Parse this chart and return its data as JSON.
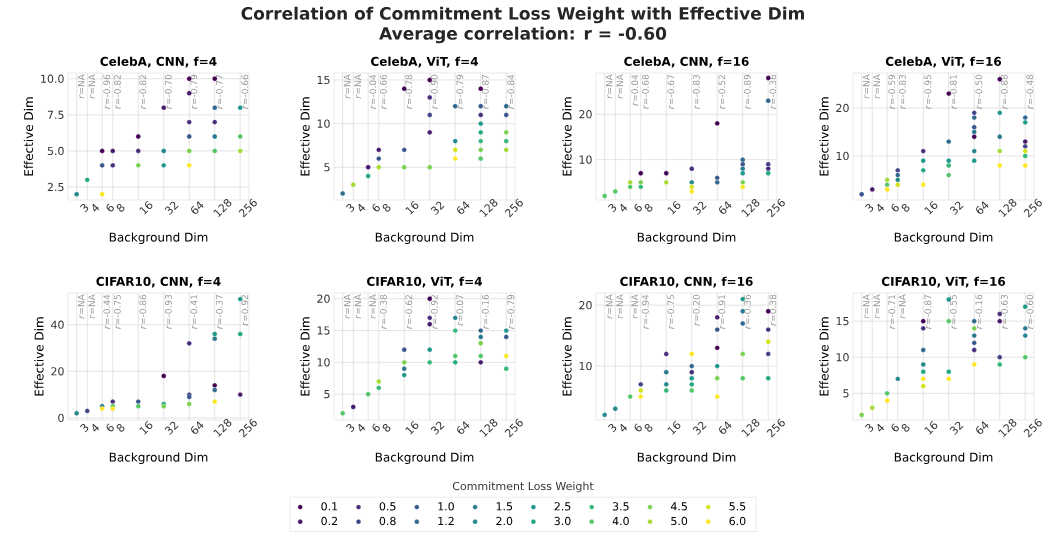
{
  "chart_data": [
    {
      "type": "scatter",
      "title": "CelebA, CNN, f=4",
      "xlabel": "Background Dim",
      "ylabel": "Effective Dim",
      "log": "x",
      "xlim": [
        2.37,
        325
      ],
      "xticks": [
        3,
        4,
        6,
        8,
        16,
        32,
        64,
        128,
        256
      ],
      "ylim": [
        1.6,
        10.4
      ],
      "yticks": [
        2.5,
        {
          "value": 5,
          "label": "5.0"
        },
        7.5,
        {
          "value": 10,
          "label": "10.0"
        }
      ],
      "grid": true,
      "marker": "circle",
      "annotations": [
        "Correlation of Commitment Loss Weight with Effective Dim",
        "Average correlation: r = -0.60",
        "*r*=NA",
        "*r*=NA",
        "*r*=-0.96",
        "*r*=-0.82",
        "*r*=-0.82",
        "*r*=-0.70",
        "*r*=-0.79",
        "*r*=-0.77",
        "*r*=-0.66"
      ],
      "series": [
        {
          "color": "#440154",
          "x": [
            6,
            16,
            64,
            128
          ],
          "values": [
            5,
            6,
            10,
            10
          ]
        },
        {
          "color": "#481a6c",
          "x": [
            8,
            32,
            64
          ],
          "values": [
            5,
            8,
            9
          ]
        },
        {
          "color": "#472f7d",
          "x": [
            8,
            16,
            64,
            128
          ],
          "values": [
            4,
            5,
            7,
            7
          ]
        },
        {
          "color": "#39568c",
          "x": [
            6,
            64
          ],
          "values": [
            4,
            6
          ]
        },
        {
          "color": "#31688e",
          "x": [
            128
          ],
          "values": [
            8
          ]
        },
        {
          "color": "#2a788e",
          "x": [
            128
          ],
          "values": [
            6
          ]
        },
        {
          "color": "#23888e",
          "x": [
            3,
            32
          ],
          "values": [
            2,
            5
          ]
        },
        {
          "color": "#1f988b",
          "x": [
            32,
            256
          ],
          "values": [
            4,
            8
          ]
        },
        {
          "color": "#22a884",
          "x": [
            4
          ],
          "values": [
            3
          ]
        },
        {
          "color": "#54c568",
          "x": [
            128,
            256
          ],
          "values": [
            5,
            6
          ]
        },
        {
          "color": "#7ad151",
          "x": [
            16,
            64
          ],
          "values": [
            4,
            5
          ]
        },
        {
          "color": "#a5db36",
          "x": [
            256
          ],
          "values": [
            5
          ]
        },
        {
          "color": "#fde725",
          "x": [
            6,
            64
          ],
          "values": [
            2,
            4
          ]
        }
      ]
    },
    {
      "type": "scatter",
      "title": "CelebA, ViT, f=4",
      "xlabel": "Background Dim",
      "ylabel": "Effective Dim",
      "log": "x",
      "xlim": [
        2.37,
        325
      ],
      "xticks": [
        3,
        4,
        6,
        8,
        16,
        32,
        64,
        128,
        256
      ],
      "ylim": [
        1.25,
        15.8
      ],
      "yticks": [
        5,
        10,
        15
      ],
      "grid": true,
      "marker": "circle",
      "annotations": [
        "*r*=NA",
        "*r*=NA",
        "*r*=-0.04",
        "*r*=-0.66",
        "*r*=-0.78",
        "*r*=-0.90",
        "*r*=-0.79",
        "*r*=-0.87",
        "*r*=-0.84"
      ],
      "series": [
        {
          "color": "#440154",
          "x": [
            16,
            32,
            128
          ],
          "values": [
            14,
            15,
            14
          ]
        },
        {
          "color": "#481a6c",
          "x": [
            6,
            8,
            32
          ],
          "values": [
            5,
            7,
            9
          ]
        },
        {
          "color": "#472f7d",
          "x": [
            32,
            128
          ],
          "values": [
            13,
            11
          ]
        },
        {
          "color": "#414487",
          "x": [
            32
          ],
          "values": [
            11
          ]
        },
        {
          "color": "#39568c",
          "x": [
            8,
            16,
            128,
            256
          ],
          "values": [
            6,
            7,
            12,
            11
          ]
        },
        {
          "color": "#31688e",
          "x": [
            3,
            64,
            256
          ],
          "values": [
            2,
            12,
            12
          ]
        },
        {
          "color": "#23888e",
          "x": [
            64
          ],
          "values": [
            8
          ]
        },
        {
          "color": "#1f988b",
          "x": [
            128
          ],
          "values": [
            10
          ]
        },
        {
          "color": "#22a884",
          "x": [
            6,
            128
          ],
          "values": [
            4,
            9
          ]
        },
        {
          "color": "#35b779",
          "x": [
            128,
            256
          ],
          "values": [
            8,
            8
          ]
        },
        {
          "color": "#54c568",
          "x": [
            128
          ],
          "values": [
            6
          ]
        },
        {
          "color": "#7ad151",
          "x": [
            16,
            32,
            128,
            256
          ],
          "values": [
            5,
            5,
            7,
            9
          ]
        },
        {
          "color": "#a5db36",
          "x": [
            4,
            8,
            256
          ],
          "values": [
            3,
            5,
            7
          ]
        },
        {
          "color": "#d2e21b",
          "x": [
            64
          ],
          "values": [
            7
          ]
        },
        {
          "color": "#fde725",
          "x": [
            64
          ],
          "values": [
            6
          ]
        }
      ]
    },
    {
      "type": "scatter",
      "title": "CelebA, CNN, f=16",
      "xlabel": "Background Dim",
      "ylabel": "Effective Dim",
      "log": "x",
      "xlim": [
        2.37,
        325
      ],
      "xticks": [
        3,
        4,
        6,
        8,
        16,
        32,
        64,
        128,
        256
      ],
      "ylim": [
        1.1,
        29.1
      ],
      "yticks": [
        10,
        20
      ],
      "grid": true,
      "marker": "circle",
      "annotations": [
        "*r*=NA",
        "*r*=NA",
        "*r*=0.04",
        "*r*=-0.68",
        "*r*=-0.67",
        "*r*=-0.83",
        "*r*=-0.52",
        "*r*=-0.89",
        "*r*=-0.36"
      ],
      "series": [
        {
          "color": "#440154",
          "x": [
            8,
            16,
            64,
            256
          ],
          "values": [
            7,
            7,
            18,
            28
          ]
        },
        {
          "color": "#472f7d",
          "x": [
            32,
            256
          ],
          "values": [
            8,
            8
          ]
        },
        {
          "color": "#414487",
          "x": [
            256
          ],
          "values": [
            9
          ]
        },
        {
          "color": "#39568c",
          "x": [
            64,
            128
          ],
          "values": [
            6,
            9
          ]
        },
        {
          "color": "#31688e",
          "x": [
            64,
            128,
            256
          ],
          "values": [
            5,
            10,
            23
          ]
        },
        {
          "color": "#2a788e",
          "x": [
            128
          ],
          "values": [
            8
          ]
        },
        {
          "color": "#23888e",
          "x": [
            32
          ],
          "values": [
            5
          ]
        },
        {
          "color": "#1f988b",
          "x": [
            128
          ],
          "values": [
            7
          ]
        },
        {
          "color": "#22a884",
          "x": [
            256
          ],
          "values": [
            7
          ]
        },
        {
          "color": "#35b779",
          "x": [
            8
          ],
          "values": [
            4
          ]
        },
        {
          "color": "#54c568",
          "x": [
            3,
            4,
            6
          ],
          "values": [
            2,
            3,
            4
          ]
        },
        {
          "color": "#7ad151",
          "x": [
            8,
            128
          ],
          "values": [
            5,
            5
          ]
        },
        {
          "color": "#a5db36",
          "x": [
            6,
            16
          ],
          "values": [
            5,
            5
          ]
        },
        {
          "color": "#d2e21b",
          "x": [
            32
          ],
          "values": [
            4
          ]
        },
        {
          "color": "#fde725",
          "x": [
            32,
            128
          ],
          "values": [
            3,
            4
          ]
        }
      ]
    },
    {
      "type": "scatter",
      "title": "CelebA, ViT, f=16",
      "xlabel": "Background Dim",
      "ylabel": "Effective Dim",
      "log": "x",
      "xlim": [
        2.37,
        325
      ],
      "xticks": [
        3,
        4,
        6,
        8,
        16,
        32,
        64,
        128,
        256
      ],
      "ylim": [
        0.8,
        27.3
      ],
      "yticks": [
        10,
        20
      ],
      "grid": true,
      "marker": "circle",
      "annotations": [
        "*r*=NA",
        "*r*=NA",
        "*r*=-0.59",
        "*r*=-0.83",
        "*r*=-0.95",
        "*r*=-0.81",
        "*r*=-0.50",
        "*r*=-0.88",
        "*r*=-0.48"
      ],
      "series": [
        {
          "color": "#440154",
          "x": [
            32,
            64,
            128
          ],
          "values": [
            23,
            14,
            26
          ]
        },
        {
          "color": "#481a6c",
          "x": [
            4,
            256
          ],
          "values": [
            3,
            13
          ]
        },
        {
          "color": "#472f7d",
          "x": [
            16
          ],
          "values": [
            11
          ]
        },
        {
          "color": "#414487",
          "x": [
            8,
            64,
            256
          ],
          "values": [
            7,
            19,
            12
          ]
        },
        {
          "color": "#39568c",
          "x": [
            3,
            64
          ],
          "values": [
            2,
            16
          ]
        },
        {
          "color": "#31688e",
          "x": [
            8,
            32,
            64,
            256
          ],
          "values": [
            6,
            13,
            18,
            18
          ]
        },
        {
          "color": "#2a788e",
          "x": [
            64,
            128
          ],
          "values": [
            15,
            14
          ]
        },
        {
          "color": "#23888e",
          "x": [
            8,
            64
          ],
          "values": [
            5,
            11
          ]
        },
        {
          "color": "#1f988b",
          "x": [
            16,
            32,
            64,
            128,
            256
          ],
          "values": [
            9,
            9,
            9,
            19,
            17
          ]
        },
        {
          "color": "#22a884",
          "x": [
            16
          ],
          "values": [
            7
          ]
        },
        {
          "color": "#35b779",
          "x": [
            32,
            256
          ],
          "values": [
            8,
            10
          ]
        },
        {
          "color": "#54c568",
          "x": [
            6,
            32
          ],
          "values": [
            4,
            6
          ]
        },
        {
          "color": "#a5db36",
          "x": [
            6,
            128
          ],
          "values": [
            5,
            11
          ]
        },
        {
          "color": "#d2e21b",
          "x": [
            8,
            256
          ],
          "values": [
            4,
            11
          ]
        },
        {
          "color": "#fde725",
          "x": [
            6,
            16,
            128,
            256
          ],
          "values": [
            3,
            4,
            8,
            8
          ]
        }
      ]
    },
    {
      "type": "scatter",
      "title": "CIFAR10, CNN, f=4",
      "xlabel": "Background Dim",
      "ylabel": "Effective Dim",
      "log": "x",
      "xlim": [
        2.37,
        325
      ],
      "xticks": [
        3,
        4,
        6,
        8,
        16,
        32,
        64,
        128,
        256
      ],
      "ylim": [
        -0.9,
        53.6
      ],
      "yticks": [
        0,
        20,
        40
      ],
      "grid": true,
      "marker": "circle",
      "annotations": [
        "*r*=NA",
        "*r*=NA",
        "*r*=-0.44",
        "*r*=-0.75",
        "*r*=-0.86",
        "*r*=-0.93",
        "*r*=-0.41",
        "*r*=-0.37",
        "*r*=0.92"
      ],
      "series": [
        {
          "color": "#440154",
          "x": [
            32,
            128
          ],
          "values": [
            18,
            14
          ]
        },
        {
          "color": "#481a6c",
          "x": [
            256
          ],
          "values": [
            10
          ]
        },
        {
          "color": "#472f7d",
          "x": [
            8,
            64
          ],
          "values": [
            7,
            32
          ]
        },
        {
          "color": "#414487",
          "x": [
            4,
            64
          ],
          "values": [
            3,
            10
          ]
        },
        {
          "color": "#39568c",
          "x": [
            16,
            64
          ],
          "values": [
            7,
            9
          ]
        },
        {
          "color": "#31688e",
          "x": [
            128
          ],
          "values": [
            12
          ]
        },
        {
          "color": "#2a788e",
          "x": [
            6,
            128
          ],
          "values": [
            5,
            34
          ]
        },
        {
          "color": "#23888e",
          "x": [
            3
          ],
          "values": [
            2
          ]
        },
        {
          "color": "#1f988b",
          "x": [
            128,
            256
          ],
          "values": [
            36,
            51
          ]
        },
        {
          "color": "#22a884",
          "x": [
            32,
            256
          ],
          "values": [
            6,
            36
          ]
        },
        {
          "color": "#54c568",
          "x": [
            8,
            16
          ],
          "values": [
            5,
            5
          ]
        },
        {
          "color": "#7ad151",
          "x": [
            32,
            64
          ],
          "values": [
            5,
            6
          ]
        },
        {
          "color": "#fde725",
          "x": [
            6,
            8,
            128
          ],
          "values": [
            4,
            4,
            7
          ]
        }
      ]
    },
    {
      "type": "scatter",
      "title": "CIFAR10, ViT, f=4",
      "xlabel": "Background Dim",
      "ylabel": "Effective Dim",
      "log": "x",
      "xlim": [
        2.37,
        325
      ],
      "xticks": [
        3,
        4,
        6,
        8,
        16,
        32,
        64,
        128,
        256
      ],
      "ylim": [
        0.94,
        20.9
      ],
      "yticks": [
        5,
        10,
        15,
        20
      ],
      "grid": true,
      "marker": "circle",
      "legend": "bottom",
      "legend_title": "Commitment Loss Weight",
      "annotations": [
        "*r*=NA",
        "*r*=NA",
        "*r*=NA",
        "*r*=-0.38",
        "*r*=-0.62",
        "*r*=-0.92",
        "*r*=0.07",
        "*r*=-0.16",
        "*r*=-0.79"
      ],
      "series": [
        {
          "name": "0.1",
          "color": "#440154",
          "x": [
            32
          ],
          "values": [
            20
          ]
        },
        {
          "name": "0.2",
          "color": "#481a6c",
          "x": [
            4,
            32,
            128
          ],
          "values": [
            3,
            16,
            10
          ]
        },
        {
          "name": "0.5",
          "color": "#472f7d",
          "x": [
            32
          ],
          "values": [
            17
          ]
        },
        {
          "name": "0.8",
          "color": "#414487"
        },
        {
          "name": "1.0",
          "color": "#39568c",
          "x": [
            16,
            256
          ],
          "values": [
            12,
            14
          ]
        },
        {
          "name": "1.2",
          "color": "#31688e",
          "x": [
            128
          ],
          "values": [
            15
          ]
        },
        {
          "name": "1.5",
          "color": "#2a788e",
          "x": [
            16,
            128
          ],
          "values": [
            9,
            14
          ]
        },
        {
          "name": "2.0",
          "color": "#23888e",
          "x": [
            64
          ],
          "values": [
            17
          ]
        },
        {
          "name": "2.5",
          "color": "#1f988b",
          "x": [
            16,
            32,
            256
          ],
          "values": [
            8,
            12,
            15
          ]
        },
        {
          "name": "3.0",
          "color": "#22a884",
          "x": [
            64
          ],
          "values": [
            10
          ]
        },
        {
          "name": "3.5",
          "color": "#35b779",
          "x": [
            8,
            32,
            64,
            256
          ],
          "values": [
            6,
            10,
            15,
            9
          ]
        },
        {
          "name": "4.0",
          "color": "#54c568",
          "x": [
            3,
            6,
            64,
            128
          ],
          "values": [
            2,
            5,
            11,
            11
          ]
        },
        {
          "name": "4.5",
          "color": "#7ad151",
          "x": [
            16,
            128
          ],
          "values": [
            10,
            13
          ]
        },
        {
          "name": "5.0",
          "color": "#a5db36",
          "x": [
            8
          ],
          "values": [
            7
          ]
        },
        {
          "name": "5.5",
          "color": "#d2e21b"
        },
        {
          "name": "6.0",
          "color": "#fde725",
          "x": [
            256
          ],
          "values": [
            11
          ]
        }
      ]
    },
    {
      "type": "scatter",
      "title": "CIFAR10, CNN, f=16",
      "xlabel": "Background Dim",
      "ylabel": "Effective Dim",
      "log": "x",
      "xlim": [
        2.37,
        325
      ],
      "xticks": [
        3,
        4,
        6,
        8,
        16,
        32,
        64,
        128,
        256
      ],
      "ylim": [
        1.15,
        22
      ],
      "yticks": [
        10,
        20
      ],
      "grid": true,
      "marker": "circle",
      "annotations": [
        "*r*=NA",
        "*r*=NA",
        "*r*=NA",
        "*r*=-0.94",
        "*r*=-0.75",
        "*r*=0.20",
        "*r*=-0.91",
        "*r*=-0.36",
        "*r*=0.38"
      ],
      "series": [
        {
          "color": "#440154",
          "x": [
            64,
            256
          ],
          "values": [
            13,
            19
          ]
        },
        {
          "color": "#481a6c",
          "x": [
            64
          ],
          "values": [
            18
          ]
        },
        {
          "color": "#472f7d",
          "x": [
            16,
            32,
            256
          ],
          "values": [
            12,
            9,
            16
          ]
        },
        {
          "color": "#414487",
          "x": [
            8,
            256
          ],
          "values": [
            7,
            12
          ]
        },
        {
          "color": "#39568c",
          "x": [
            64
          ],
          "values": [
            16
          ]
        },
        {
          "color": "#31688e",
          "x": [
            32,
            128
          ],
          "values": [
            10,
            17
          ]
        },
        {
          "color": "#2a788e",
          "x": [
            16,
            128
          ],
          "values": [
            9,
            19
          ]
        },
        {
          "color": "#23888e",
          "x": [
            3,
            4,
            16
          ],
          "values": [
            2,
            3,
            7
          ]
        },
        {
          "color": "#1f988b",
          "x": [
            32,
            64,
            128
          ],
          "values": [
            8,
            10,
            21
          ]
        },
        {
          "color": "#22a884",
          "x": [
            32,
            256
          ],
          "values": [
            7,
            8
          ]
        },
        {
          "color": "#35b779",
          "x": [
            16
          ],
          "values": [
            6
          ]
        },
        {
          "color": "#54c568",
          "x": [
            6,
            32,
            128
          ],
          "values": [
            5,
            6,
            8
          ]
        },
        {
          "color": "#7ad151",
          "x": [
            64,
            128
          ],
          "values": [
            8,
            12
          ]
        },
        {
          "color": "#d2e21b",
          "x": [
            8,
            256
          ],
          "values": [
            6,
            14
          ]
        },
        {
          "color": "#fde725",
          "x": [
            8,
            32,
            64
          ],
          "values": [
            5,
            12,
            5
          ]
        }
      ]
    },
    {
      "type": "scatter",
      "title": "CIFAR10, ViT, f=16",
      "xlabel": "Background Dim",
      "ylabel": "Effective Dim",
      "log": "x",
      "xlim": [
        2.37,
        325
      ],
      "xticks": [
        3,
        4,
        6,
        8,
        16,
        32,
        64,
        128,
        256
      ],
      "ylim": [
        1.3,
        18.9
      ],
      "yticks": [
        5,
        10,
        15
      ],
      "grid": true,
      "marker": "circle",
      "annotations": [
        "*r*=NA",
        "*r*=NA",
        "*r*=-0.71",
        "*r*=NA",
        "*r*=-0.87",
        "*r*=-0.55",
        "*r*=-0.16",
        "*r*=-0.63",
        "*r*=-0.60"
      ],
      "series": [
        {
          "color": "#440154",
          "x": [
            16
          ],
          "values": [
            15
          ]
        },
        {
          "color": "#481a6c",
          "x": [
            128
          ],
          "values": [
            15
          ]
        },
        {
          "color": "#472f7d",
          "x": [
            16,
            64,
            128
          ],
          "values": [
            14,
            11,
            16
          ]
        },
        {
          "color": "#414487",
          "x": [
            128
          ],
          "values": [
            10
          ]
        },
        {
          "color": "#39568c",
          "x": [
            64
          ],
          "values": [
            12
          ]
        },
        {
          "color": "#31688e",
          "x": [
            16,
            64
          ],
          "values": [
            11,
            15
          ]
        },
        {
          "color": "#2a788e",
          "x": [
            64,
            256
          ],
          "values": [
            13,
            14
          ]
        },
        {
          "color": "#23888e",
          "x": [
            8,
            16,
            256
          ],
          "values": [
            7,
            9,
            13
          ]
        },
        {
          "color": "#1f988b",
          "x": [
            32,
            256
          ],
          "values": [
            18,
            17
          ]
        },
        {
          "color": "#22a884",
          "x": [
            16,
            32
          ],
          "values": [
            8,
            8
          ]
        },
        {
          "color": "#35b779",
          "x": [
            128
          ],
          "values": [
            9
          ]
        },
        {
          "color": "#54c568",
          "x": [
            6,
            32,
            256
          ],
          "values": [
            5,
            15,
            10
          ]
        },
        {
          "color": "#7ad151",
          "x": [
            3,
            64
          ],
          "values": [
            2,
            14
          ]
        },
        {
          "color": "#a5db36",
          "x": [
            4
          ],
          "values": [
            3
          ]
        },
        {
          "color": "#d2e21b",
          "x": [
            16
          ],
          "values": [
            6
          ]
        },
        {
          "color": "#fde725",
          "x": [
            6,
            16,
            32,
            64
          ],
          "values": [
            4,
            7,
            7,
            9
          ]
        }
      ]
    }
  ]
}
